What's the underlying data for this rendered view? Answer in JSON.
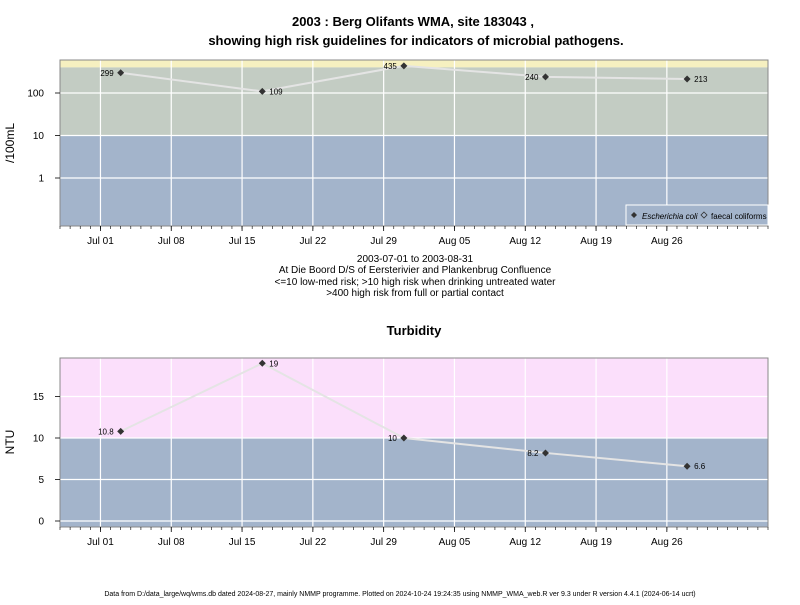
{
  "title_line1": "2003 : Berg Olifants WMA, site 183043 ,",
  "title_line2": "showing high risk guidelines for indicators of microbial pathogens.",
  "caption": [
    "2003-07-01 to 2003-08-31",
    "At Die Boord D/S of Eersterivier and Plankenbrug Confluence",
    "<=10 low-med risk; >10 high risk when drinking untreated water",
    ">400 high risk from full or partial contact"
  ],
  "footer": "Data from D:/data_large/wq/wms.db dated 2024-08-27, mainly NMMP programme. Plotted on 2024-10-24 19:24:35 using NMMP_WMA_web.R ver 9.3 under R version 4.4.1 (2024-06-14 ucrt)",
  "colors": {
    "low_zone": "#a3b4cb",
    "mid_zone": "#c3ccc3",
    "high_zone_microbial": "#f6f0c0",
    "high_zone_turbidity": "#fbdffb",
    "line": "#e4e4e4",
    "grid": "#ffffff",
    "point": "#333333"
  },
  "chart_data": [
    {
      "type": "line",
      "title": "",
      "xlabel": "",
      "ylabel": "/100mL",
      "yscale": "log",
      "x_tick_labels": [
        "Jul 01",
        "Jul 08",
        "Jul 15",
        "Jul 22",
        "Jul 29",
        "Aug 05",
        "Aug 12",
        "Aug 19",
        "Aug 26"
      ],
      "y_tick_labels": [
        "1",
        "10",
        "100"
      ],
      "x": [
        "2003-07-03",
        "2003-07-17",
        "2003-07-31",
        "2003-08-14",
        "2003-08-28"
      ],
      "series": [
        {
          "name": "Escherichia coli",
          "values": [
            299,
            109,
            435,
            240,
            213
          ],
          "data_labels": [
            "299",
            "109",
            "435",
            "240",
            "213"
          ]
        }
      ],
      "legend": [
        "Escherichia coli",
        "faecal coliforms"
      ],
      "legend_position": "bottom-right",
      "risk_zones": [
        10,
        400
      ],
      "grid": true
    },
    {
      "type": "line",
      "title": "Turbidity",
      "xlabel": "",
      "ylabel": "NTU",
      "x_tick_labels": [
        "Jul 01",
        "Jul 08",
        "Jul 15",
        "Jul 22",
        "Jul 29",
        "Aug 05",
        "Aug 12",
        "Aug 19",
        "Aug 26"
      ],
      "y_tick_labels": [
        "0",
        "5",
        "10",
        "15"
      ],
      "x": [
        "2003-07-03",
        "2003-07-17",
        "2003-07-31",
        "2003-08-14",
        "2003-08-28"
      ],
      "series": [
        {
          "values": [
            10.8,
            19,
            10,
            8.2,
            6.6
          ],
          "data_labels": [
            "10.8",
            "19",
            "10",
            "8.2",
            "6.6"
          ]
        }
      ],
      "risk_zones": [
        10
      ],
      "grid": true
    }
  ]
}
